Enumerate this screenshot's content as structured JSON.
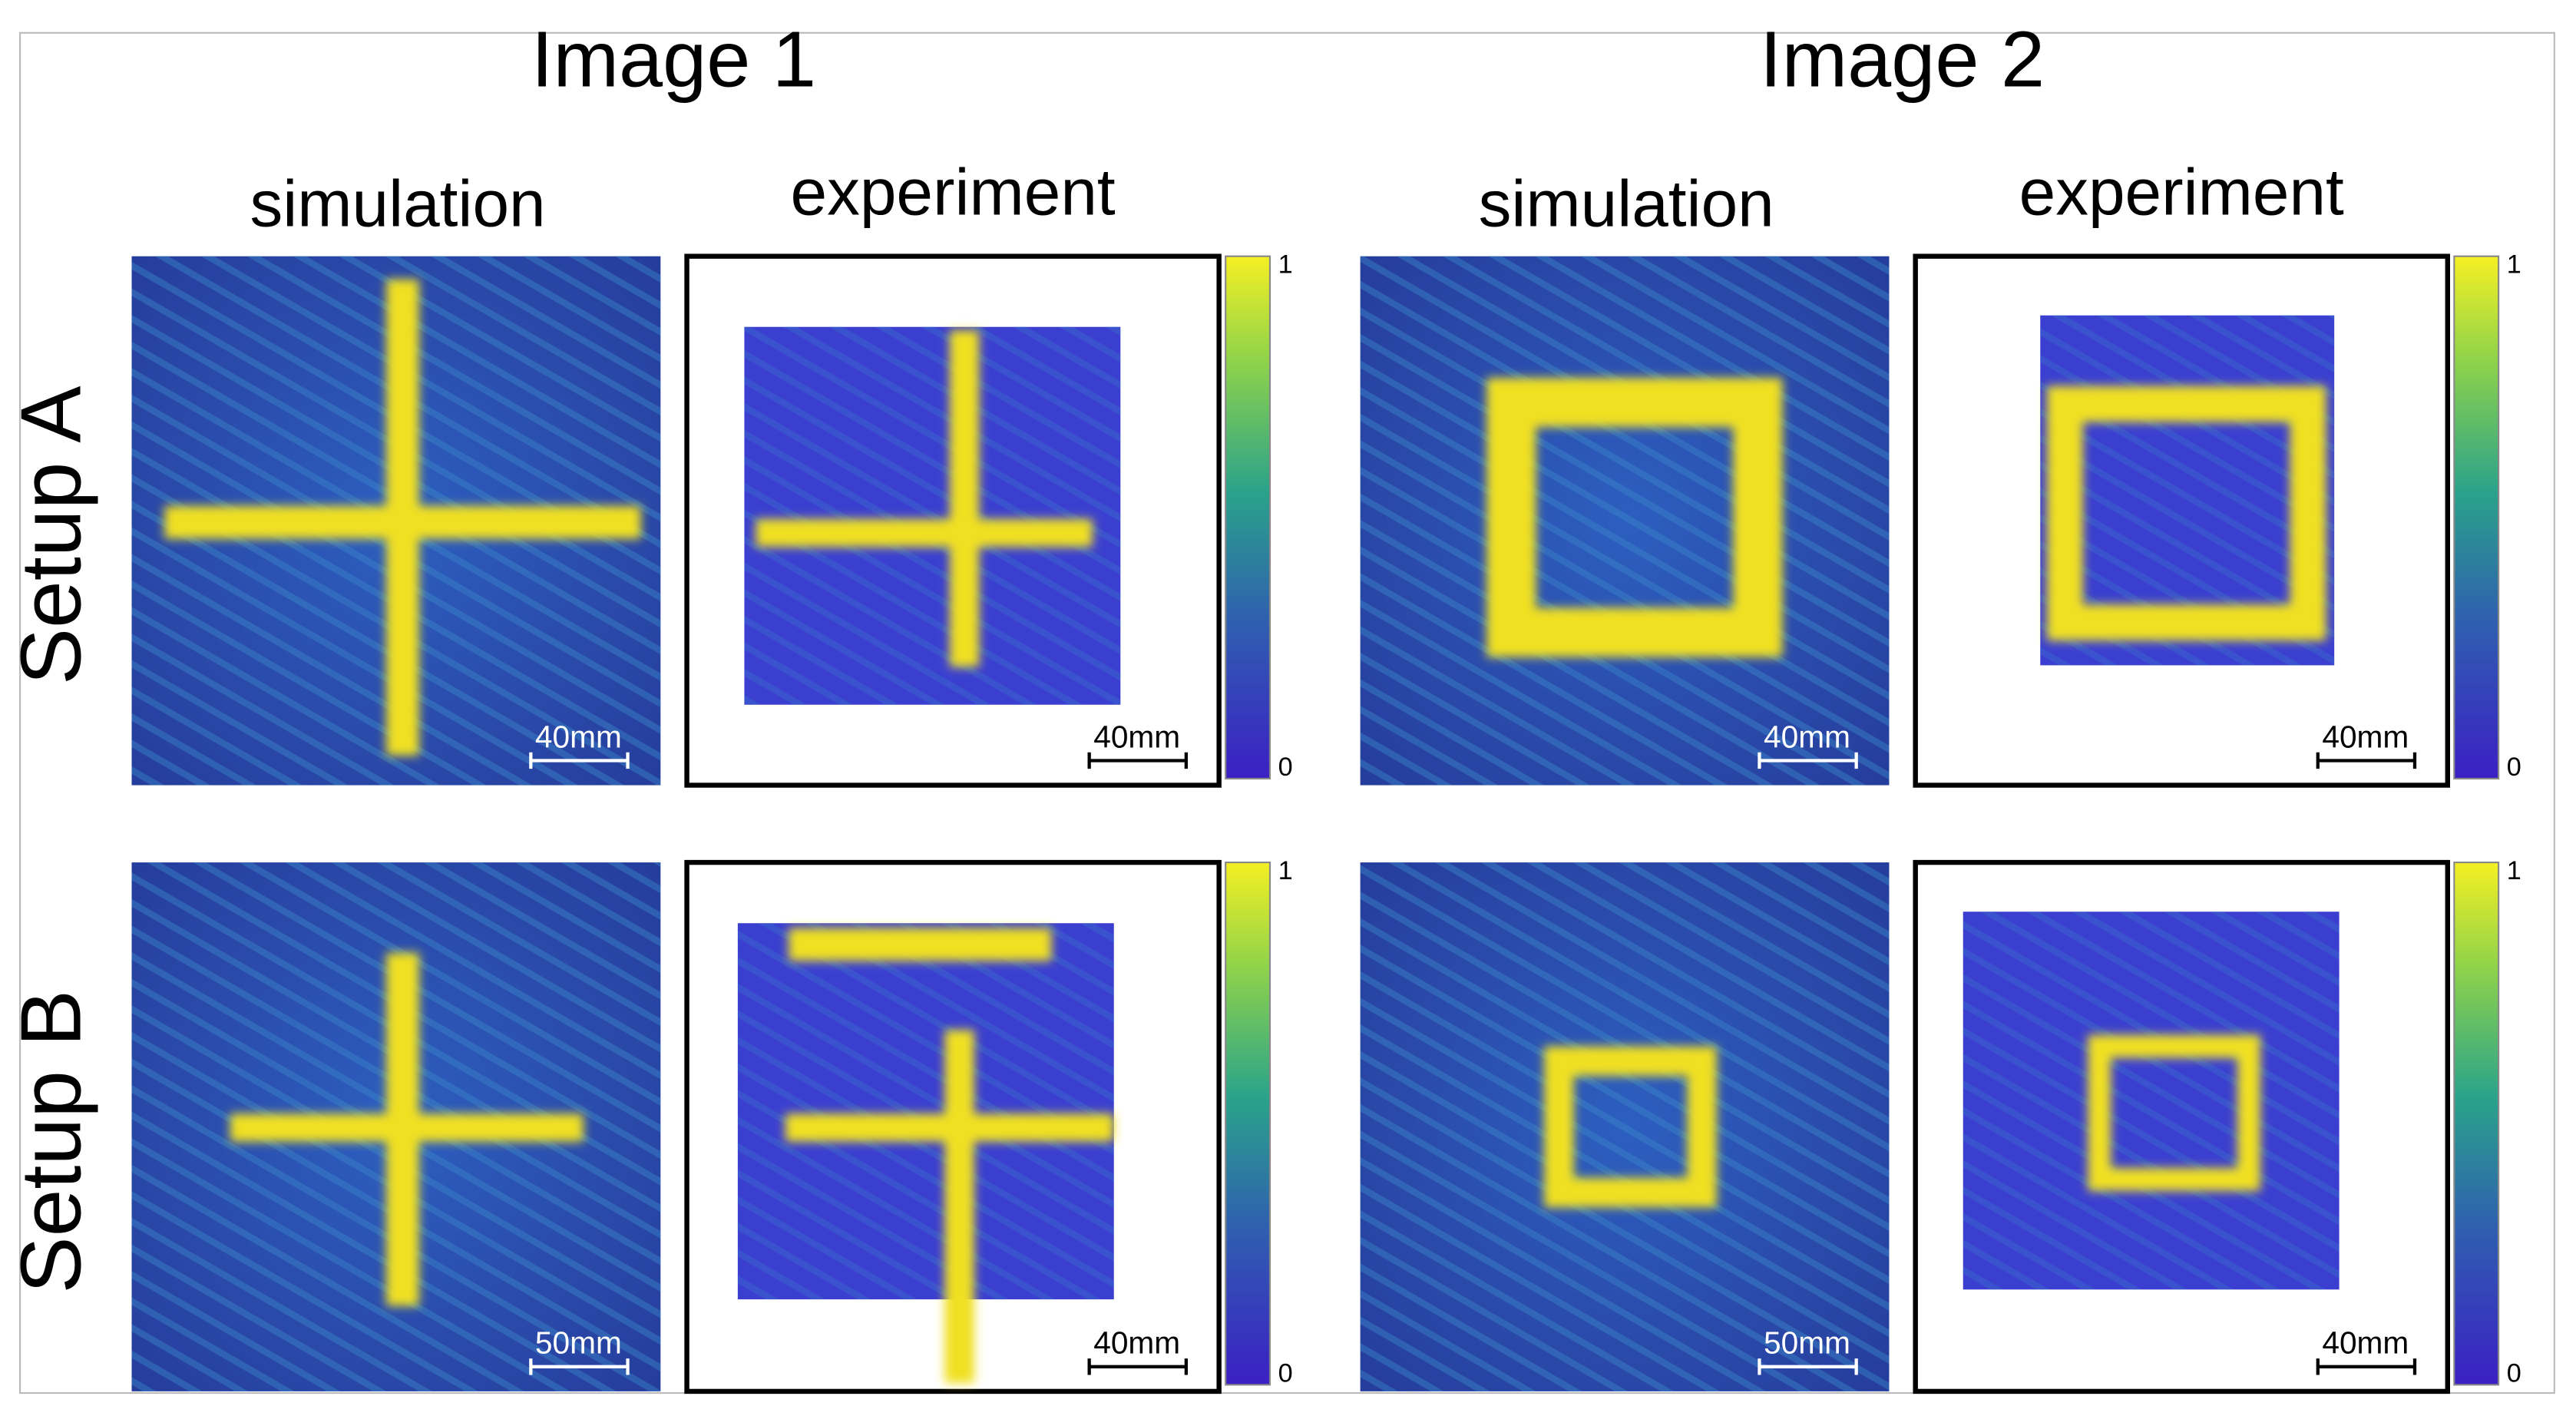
{
  "groups": [
    {
      "title": "Image 1",
      "columns": [
        "simulation",
        "experiment"
      ]
    },
    {
      "title": "Image 2",
      "columns": [
        "simulation",
        "experiment"
      ]
    }
  ],
  "rows": [
    {
      "label": "Setup A",
      "scales": [
        "40mm",
        "40mm",
        "40mm",
        "40mm"
      ],
      "colorbars": [
        [
          "1",
          "0"
        ],
        [
          "1",
          "0"
        ]
      ]
    },
    {
      "label": "Setup B",
      "scales": [
        "50mm",
        "40mm",
        "50mm",
        "40mm"
      ],
      "colorbars": [
        [
          "1",
          "0"
        ],
        [
          "1",
          "0"
        ]
      ]
    }
  ]
}
